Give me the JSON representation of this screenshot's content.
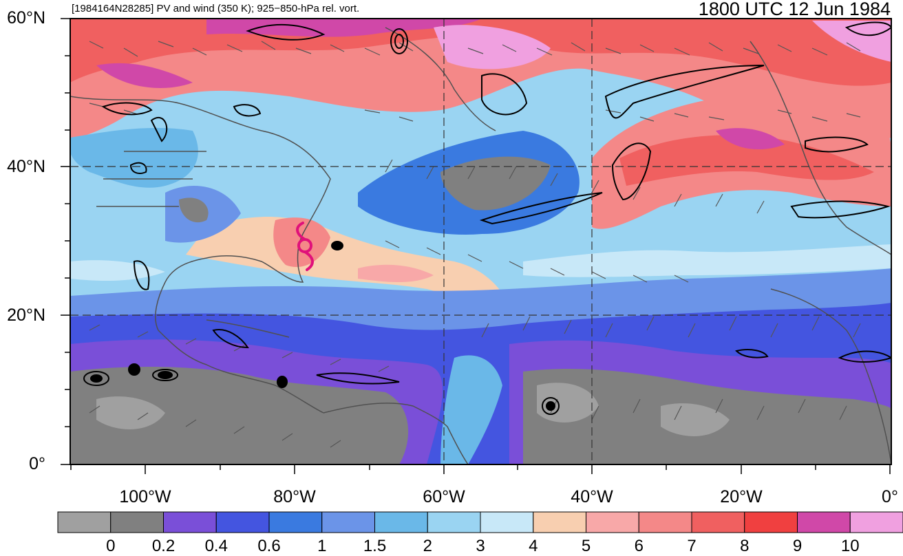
{
  "header": {
    "left_title": "[1984164N28285] PV and wind (350 K); 925−850-hPa rel. vort.",
    "right_title": "1800 UTC 12 Jun 1984"
  },
  "axes": {
    "lat_labels": [
      "60°N",
      "40°N",
      "20°N",
      "0°"
    ],
    "lon_labels": [
      "100°W",
      "80°W",
      "60°W",
      "40°W",
      "20°W",
      "0°"
    ]
  },
  "colorbar": {
    "colors": [
      "#a0a0a0",
      "#808080",
      "#7a4fd8",
      "#4455e0",
      "#3a7ae0",
      "#6b94e8",
      "#6ab8e8",
      "#9ad4f2",
      "#c8e8f8",
      "#f8cfb0",
      "#f8a8a8",
      "#f48888",
      "#f06060",
      "#f04040",
      "#d048a8",
      "#f0a0e0"
    ],
    "labels": [
      "0",
      "0.2",
      "0.4",
      "0.6",
      "1",
      "1.5",
      "2",
      "3",
      "4",
      "5",
      "6",
      "7",
      "8",
      "9",
      "10"
    ]
  },
  "map": {
    "storm_marker_color": "#e0107a"
  }
}
